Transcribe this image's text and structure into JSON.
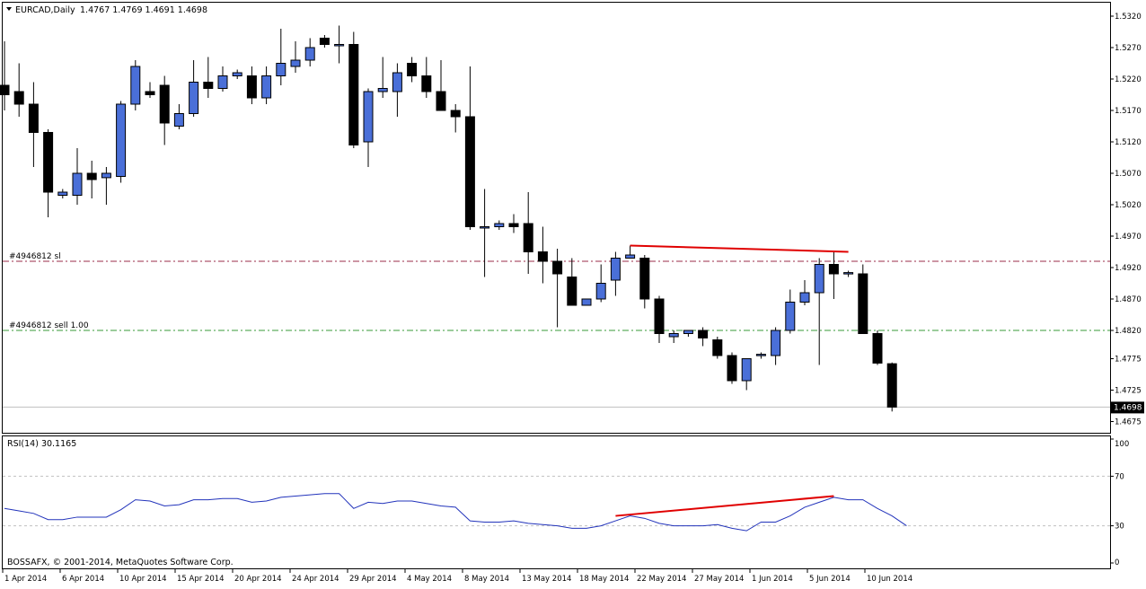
{
  "main_chart": {
    "symbol_label": "EURCAD,Daily",
    "ohlc_label": "1.4767 1.4769 1.4691 1.4698",
    "current_price": "1.4698",
    "price_ticks": [
      "1.5320",
      "1.5270",
      "1.5220",
      "1.5170",
      "1.5120",
      "1.5070",
      "1.5020",
      "1.4970",
      "1.4920",
      "1.4870",
      "1.4820",
      "1.4775",
      "1.4725",
      "1.4675"
    ],
    "sl_line_label": "#4946812 sl",
    "sl_price": 1.493,
    "sell_line_label": "#4946812 sell 1.00",
    "sell_price": 1.482
  },
  "rsi_panel": {
    "label": "RSI(14) 30.1165",
    "levels": [
      "100",
      "70",
      "30",
      "0"
    ]
  },
  "copyright": "BOSSAFX, © 2001-2014, MetaQuotes Software Corp.",
  "date_ticks": [
    "1 Apr 2014",
    "6 Apr 2014",
    "10 Apr 2014",
    "15 Apr 2014",
    "20 Apr 2014",
    "24 Apr 2014",
    "29 Apr 2014",
    "4 May 2014",
    "8 May 2014",
    "13 May 2014",
    "18 May 2014",
    "22 May 2014",
    "27 May 2014",
    "1 Jun 2014",
    "5 Jun 2014",
    "10 Jun 2014"
  ],
  "colors": {
    "bull": "#4a6fd8",
    "bear": "#000000",
    "rsi_line": "#2233bb",
    "trendline": "#e00000",
    "sl_line": "#9b2d4a",
    "sell_line": "#3a9a3a"
  },
  "chart_data": {
    "type": "candlestick",
    "candles": [
      {
        "o": 1.521,
        "h": 1.528,
        "l": 1.517,
        "c": 1.5195
      },
      {
        "o": 1.52,
        "h": 1.5245,
        "l": 1.516,
        "c": 1.518
      },
      {
        "o": 1.518,
        "h": 1.5215,
        "l": 1.508,
        "c": 1.5135
      },
      {
        "o": 1.5135,
        "h": 1.514,
        "l": 1.5,
        "c": 1.504
      },
      {
        "o": 1.5035,
        "h": 1.5045,
        "l": 1.503,
        "c": 1.504
      },
      {
        "o": 1.5035,
        "h": 1.511,
        "l": 1.502,
        "c": 1.507
      },
      {
        "o": 1.507,
        "h": 1.509,
        "l": 1.503,
        "c": 1.506
      },
      {
        "o": 1.5063,
        "h": 1.508,
        "l": 1.502,
        "c": 1.507
      },
      {
        "o": 1.5065,
        "h": 1.5185,
        "l": 1.5055,
        "c": 1.518
      },
      {
        "o": 1.518,
        "h": 1.525,
        "l": 1.517,
        "c": 1.524
      },
      {
        "o": 1.52,
        "h": 1.5215,
        "l": 1.519,
        "c": 1.5195
      },
      {
        "o": 1.521,
        "h": 1.5225,
        "l": 1.5115,
        "c": 1.515
      },
      {
        "o": 1.5145,
        "h": 1.518,
        "l": 1.514,
        "c": 1.5165
      },
      {
        "o": 1.5165,
        "h": 1.525,
        "l": 1.516,
        "c": 1.5215
      },
      {
        "o": 1.5215,
        "h": 1.5255,
        "l": 1.519,
        "c": 1.5205
      },
      {
        "o": 1.5205,
        "h": 1.524,
        "l": 1.52,
        "c": 1.5225
      },
      {
        "o": 1.5225,
        "h": 1.5235,
        "l": 1.522,
        "c": 1.523
      },
      {
        "o": 1.5225,
        "h": 1.524,
        "l": 1.518,
        "c": 1.519
      },
      {
        "o": 1.519,
        "h": 1.524,
        "l": 1.518,
        "c": 1.5225
      },
      {
        "o": 1.5225,
        "h": 1.53,
        "l": 1.521,
        "c": 1.5245
      },
      {
        "o": 1.524,
        "h": 1.528,
        "l": 1.523,
        "c": 1.525
      },
      {
        "o": 1.525,
        "h": 1.5285,
        "l": 1.524,
        "c": 1.527
      },
      {
        "o": 1.5285,
        "h": 1.529,
        "l": 1.527,
        "c": 1.5275
      },
      {
        "o": 1.5275,
        "h": 1.5305,
        "l": 1.5245,
        "c": 1.5275
      },
      {
        "o": 1.5275,
        "h": 1.5295,
        "l": 1.511,
        "c": 1.5115
      },
      {
        "o": 1.512,
        "h": 1.5205,
        "l": 1.508,
        "c": 1.52
      },
      {
        "o": 1.52,
        "h": 1.5255,
        "l": 1.519,
        "c": 1.5205
      },
      {
        "o": 1.52,
        "h": 1.5245,
        "l": 1.516,
        "c": 1.523
      },
      {
        "o": 1.5245,
        "h": 1.5255,
        "l": 1.5215,
        "c": 1.5225
      },
      {
        "o": 1.5225,
        "h": 1.5255,
        "l": 1.519,
        "c": 1.52
      },
      {
        "o": 1.52,
        "h": 1.525,
        "l": 1.517,
        "c": 1.517
      },
      {
        "o": 1.517,
        "h": 1.518,
        "l": 1.5135,
        "c": 1.516
      },
      {
        "o": 1.516,
        "h": 1.524,
        "l": 1.498,
        "c": 1.4985
      },
      {
        "o": 1.4985,
        "h": 1.5045,
        "l": 1.4905,
        "c": 1.4985
      },
      {
        "o": 1.4985,
        "h": 1.4995,
        "l": 1.498,
        "c": 1.499
      },
      {
        "o": 1.499,
        "h": 1.5005,
        "l": 1.4975,
        "c": 1.4985
      },
      {
        "o": 1.499,
        "h": 1.504,
        "l": 1.491,
        "c": 1.4945
      },
      {
        "o": 1.4945,
        "h": 1.4985,
        "l": 1.4895,
        "c": 1.493
      },
      {
        "o": 1.493,
        "h": 1.495,
        "l": 1.4825,
        "c": 1.491
      },
      {
        "o": 1.4905,
        "h": 1.4935,
        "l": 1.486,
        "c": 1.486
      },
      {
        "o": 1.486,
        "h": 1.487,
        "l": 1.486,
        "c": 1.487
      },
      {
        "o": 1.487,
        "h": 1.4925,
        "l": 1.4865,
        "c": 1.4895
      },
      {
        "o": 1.49,
        "h": 1.4945,
        "l": 1.4875,
        "c": 1.4935
      },
      {
        "o": 1.4935,
        "h": 1.4955,
        "l": 1.4935,
        "c": 1.494
      },
      {
        "o": 1.4935,
        "h": 1.494,
        "l": 1.4855,
        "c": 1.487
      },
      {
        "o": 1.487,
        "h": 1.4875,
        "l": 1.48,
        "c": 1.4815
      },
      {
        "o": 1.481,
        "h": 1.482,
        "l": 1.48,
        "c": 1.4815
      },
      {
        "o": 1.4815,
        "h": 1.482,
        "l": 1.481,
        "c": 1.482
      },
      {
        "o": 1.482,
        "h": 1.4825,
        "l": 1.4795,
        "c": 1.4808
      },
      {
        "o": 1.4805,
        "h": 1.481,
        "l": 1.4775,
        "c": 1.478
      },
      {
        "o": 1.478,
        "h": 1.4785,
        "l": 1.4735,
        "c": 1.474
      },
      {
        "o": 1.474,
        "h": 1.4775,
        "l": 1.4725,
        "c": 1.4775
      },
      {
        "o": 1.478,
        "h": 1.4785,
        "l": 1.4775,
        "c": 1.4782
      },
      {
        "o": 1.478,
        "h": 1.4825,
        "l": 1.4765,
        "c": 1.482
      },
      {
        "o": 1.482,
        "h": 1.4885,
        "l": 1.4815,
        "c": 1.4865
      },
      {
        "o": 1.4865,
        "h": 1.49,
        "l": 1.486,
        "c": 1.488
      },
      {
        "o": 1.488,
        "h": 1.4935,
        "l": 1.4765,
        "c": 1.4925
      },
      {
        "o": 1.4925,
        "h": 1.4945,
        "l": 1.487,
        "c": 1.491
      },
      {
        "o": 1.491,
        "h": 1.4915,
        "l": 1.4905,
        "c": 1.4912
      },
      {
        "o": 1.491,
        "h": 1.4925,
        "l": 1.4815,
        "c": 1.4815
      },
      {
        "o": 1.4815,
        "h": 1.482,
        "l": 1.4765,
        "c": 1.4768
      },
      {
        "o": 1.4767,
        "h": 1.4769,
        "l": 1.4691,
        "c": 1.4698
      }
    ],
    "rsi": [
      44,
      42,
      40,
      35,
      35,
      37,
      37,
      37,
      43,
      51,
      50,
      46,
      47,
      51,
      51,
      52,
      52,
      49,
      50,
      53,
      54,
      55,
      56,
      56,
      44,
      49,
      48,
      50,
      50,
      48,
      46,
      45,
      34,
      33,
      33,
      34,
      32,
      31,
      30,
      28,
      28,
      30,
      34,
      38,
      36,
      32,
      30,
      30,
      30,
      31,
      28,
      26,
      33,
      33,
      38,
      45,
      49,
      53,
      51,
      51,
      44,
      38,
      30
    ],
    "price_trendline": {
      "from": {
        "index": 43,
        "price": 1.4955
      },
      "to": {
        "index": 58,
        "price": 1.4945
      }
    },
    "rsi_trendline": {
      "from": {
        "index": 42,
        "rsi": 38
      },
      "to": {
        "index": 57,
        "rsi": 54
      }
    }
  }
}
